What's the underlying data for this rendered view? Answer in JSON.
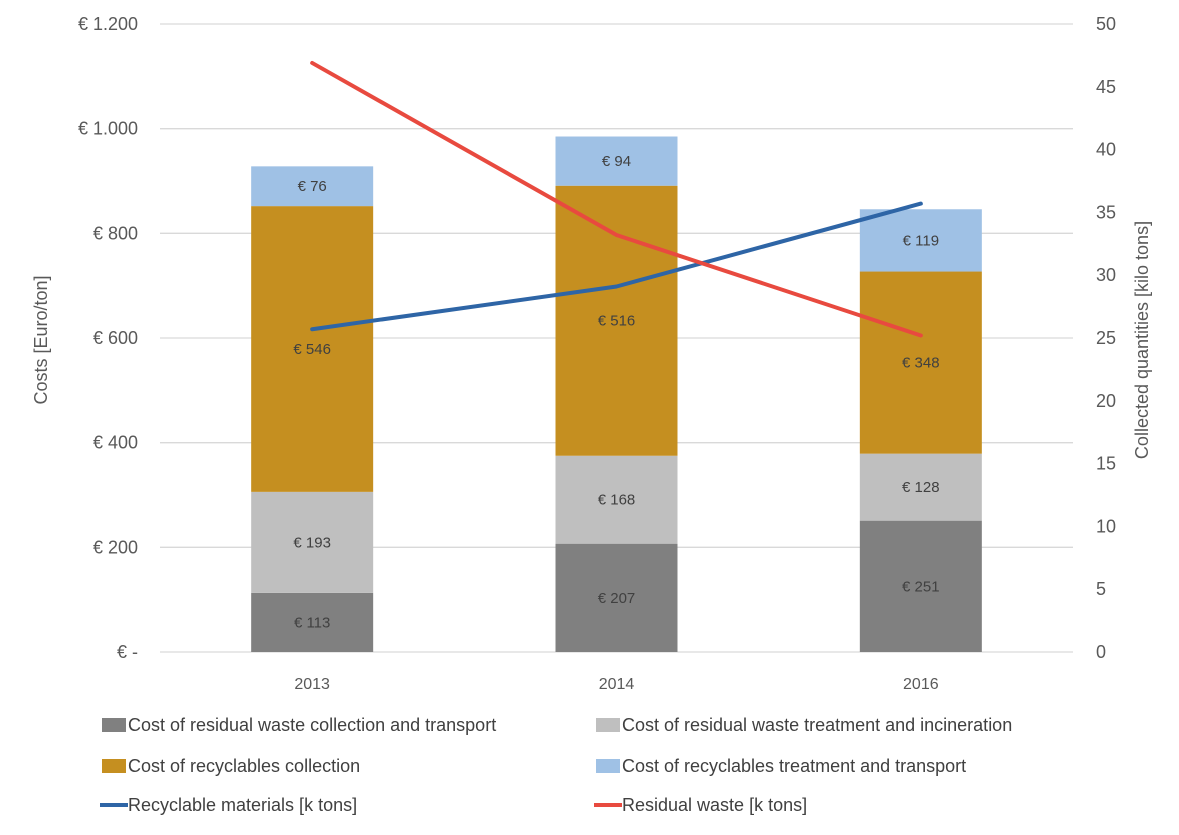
{
  "chart_data": {
    "type": "bar",
    "stacked": true,
    "categories": [
      "2013",
      "2014",
      "2016"
    ],
    "ylabel": "Costs [Euro/ton]",
    "y2label": "Collected quantities [kilo tons]",
    "ylim": [
      0,
      1200
    ],
    "y2lim": [
      0,
      50
    ],
    "yticks": [
      "€ -",
      "€ 200",
      "€ 400",
      "€ 600",
      "€ 800",
      "€ 1.000",
      "€ 1.200"
    ],
    "y2ticks": [
      "0",
      "5",
      "10",
      "15",
      "20",
      "25",
      "30",
      "35",
      "40",
      "45",
      "50"
    ],
    "grid": true,
    "legend_position": "bottom",
    "series": [
      {
        "name": "Cost of residual waste collection and transport",
        "axis": "left",
        "kind": "bar",
        "color": "#808080",
        "values": [
          113,
          207,
          251
        ],
        "labels": [
          "€ 113",
          "€ 207",
          "€ 251"
        ]
      },
      {
        "name": "Cost of residual waste treatment and incineration",
        "axis": "left",
        "kind": "bar",
        "color": "#bfbfbf",
        "values": [
          193,
          168,
          128
        ],
        "labels": [
          "€ 193",
          "€ 168",
          "€ 128"
        ]
      },
      {
        "name": "Cost of recyclables collection",
        "axis": "left",
        "kind": "bar",
        "color": "#c58f20",
        "values": [
          546,
          516,
          348
        ],
        "labels": [
          "€ 546",
          "€ 516",
          "€ 348"
        ]
      },
      {
        "name": "Cost of recyclables treatment and transport",
        "axis": "left",
        "kind": "bar",
        "color": "#9fc1e5",
        "values": [
          76,
          94,
          119
        ],
        "labels": [
          "€ 76",
          "€ 94",
          "€ 119"
        ]
      },
      {
        "name": "Recyclable materials [k tons]",
        "axis": "right",
        "kind": "line",
        "color": "#2e65a6",
        "values": [
          25.7,
          29.1,
          35.7
        ]
      },
      {
        "name": "Residual waste [k tons]",
        "axis": "right",
        "kind": "line",
        "color": "#e84a3f",
        "values": [
          46.9,
          33.2,
          25.2
        ]
      }
    ]
  }
}
